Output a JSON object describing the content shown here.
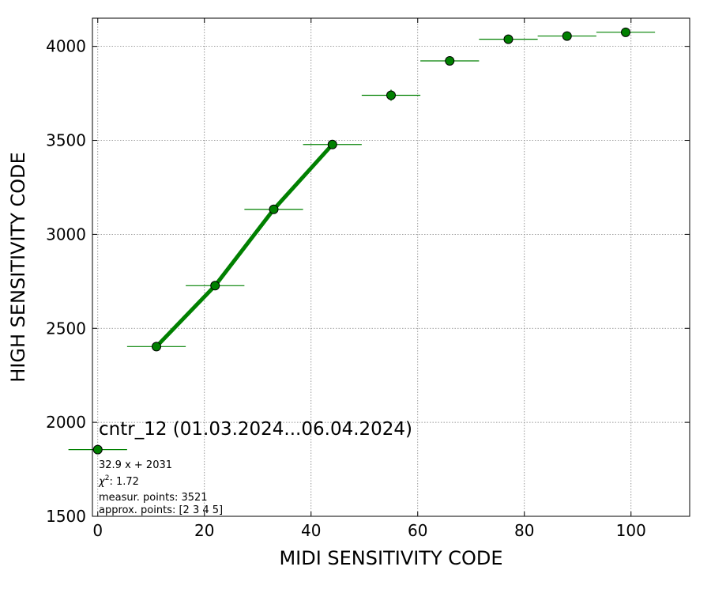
{
  "chart_data": {
    "type": "scatter",
    "title": "",
    "xlabel": "MIDI SENSITIVITY CODE",
    "ylabel": "HIGH SENSITIVITY CODE",
    "xlim": [
      -1,
      111
    ],
    "ylim": [
      1500,
      4150
    ],
    "xticks": [
      0,
      20,
      40,
      60,
      80,
      100
    ],
    "yticks": [
      1500,
      2000,
      2500,
      3000,
      3500,
      4000
    ],
    "grid": true,
    "marker_color": "#008000",
    "line_color": "#008000",
    "points": [
      {
        "x": 0,
        "y": 1855,
        "xerr": 5.5,
        "yerr": 0
      },
      {
        "x": 11,
        "y": 2403,
        "xerr": 5.5,
        "yerr": 0
      },
      {
        "x": 22,
        "y": 2727,
        "xerr": 5.5,
        "yerr": 0
      },
      {
        "x": 33,
        "y": 3133,
        "xerr": 5.5,
        "yerr": 0
      },
      {
        "x": 44,
        "y": 3478,
        "xerr": 5.5,
        "yerr": 0
      },
      {
        "x": 55,
        "y": 3740,
        "xerr": 5.5,
        "yerr": 30
      },
      {
        "x": 66,
        "y": 3923,
        "xerr": 5.5,
        "yerr": 0
      },
      {
        "x": 77,
        "y": 4038,
        "xerr": 5.5,
        "yerr": 0
      },
      {
        "x": 88,
        "y": 4055,
        "xerr": 5.5,
        "yerr": 0
      },
      {
        "x": 99,
        "y": 4075,
        "xerr": 5.5,
        "yerr": 0
      }
    ],
    "fit": {
      "slope": 32.9,
      "intercept": 2031,
      "x_range": [
        11,
        44
      ]
    },
    "annotation": {
      "title": "cntr_12 (01.03.2024...06.04.2024)",
      "equation": "32.9 x + 2031",
      "chi2_label": "χ",
      "chi2_sup": "2",
      "chi2_value": ": 1.72",
      "measur_points": "measur. points: 3521",
      "approx_points": "approx. points: [2 3 4 5]"
    }
  }
}
